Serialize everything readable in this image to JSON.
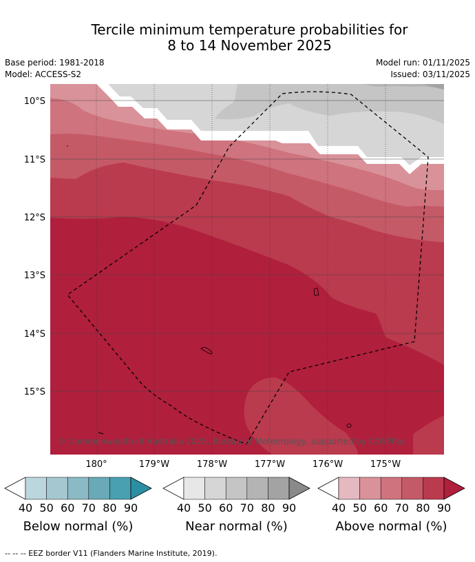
{
  "title_line1": "Tercile minimum temperature probabilities for",
  "title_line2": "8 to 14 November 2025",
  "base_period": "Base period: 1981-2018",
  "model": "Model: ACCESS-S2",
  "model_run": "Model run: 01/11/2025",
  "issued": "Issued: 03/11/2025",
  "copyright": "© Commonwealth of Australia 2025, Bureau of Meteorology, supported by COSPPac",
  "lat_labels": [
    "10°S",
    "11°S",
    "12°S",
    "13°S",
    "14°S",
    "15°S"
  ],
  "lon_labels": [
    "180°",
    "179°W",
    "178°W",
    "177°W",
    "176°W",
    "175°W"
  ],
  "colorbars": [
    {
      "title": "Below normal (%)",
      "ticks": [
        "40",
        "50",
        "60",
        "70",
        "80",
        "90"
      ],
      "colors": [
        "#bcd6de",
        "#a5c8d0",
        "#8bbac6",
        "#6aa9b8",
        "#48a0b0",
        "#2a8fa3"
      ]
    },
    {
      "title": "Near normal (%)",
      "ticks": [
        "40",
        "50",
        "60",
        "70",
        "80",
        "90"
      ],
      "colors": [
        "#e7e7e7",
        "#d6d6d6",
        "#c5c5c5",
        "#b4b4b4",
        "#a3a3a3",
        "#8a8a8a"
      ]
    },
    {
      "title": "Above normal (%)",
      "ticks": [
        "40",
        "50",
        "60",
        "70",
        "80",
        "90"
      ],
      "colors": [
        "#e4b9bf",
        "#d99299",
        "#cf737e",
        "#c55a67",
        "#ba3a4e",
        "#b01f3c"
      ]
    }
  ],
  "legend_footer": "-- -- -- EEZ border V11 (Flanders Marine Institute, 2019)."
}
